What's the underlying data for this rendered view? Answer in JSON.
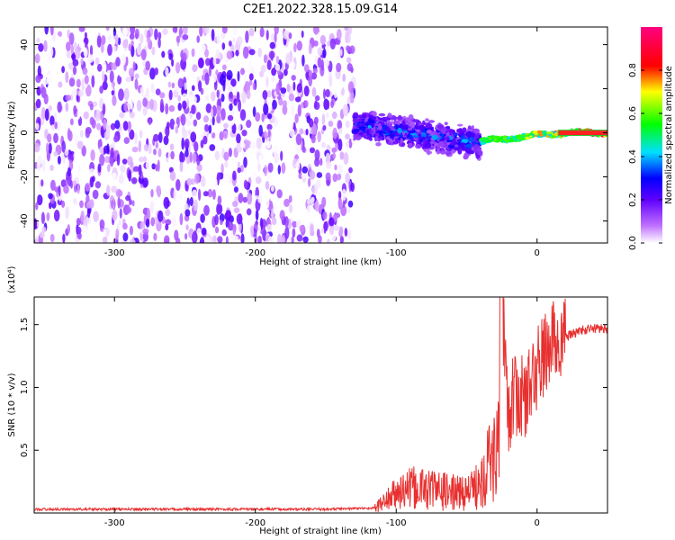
{
  "title": "C2E1.2022.328.15.09.G14",
  "chart_data": [
    {
      "type": "heatmap",
      "xlabel": "Height of straight line (km)",
      "ylabel": "Frequency (Hz)",
      "xlim": [
        -357,
        50
      ],
      "ylim": [
        -50,
        48
      ],
      "xticks": [
        -300,
        -200,
        -100,
        0
      ],
      "xtick_labels": [
        "-300",
        "-200",
        "-100",
        "0"
      ],
      "yticks": [
        -40,
        -20,
        0,
        20,
        40
      ],
      "ytick_labels": [
        "-40",
        "-20",
        "0",
        "20",
        "40"
      ],
      "colorbar": {
        "label": "Normalized spectral amplitude",
        "range": [
          0,
          1
        ],
        "ticks": [
          0.0,
          0.2,
          0.4,
          0.6,
          0.8
        ],
        "tick_labels": [
          "0.0",
          "0.2",
          "0.4",
          "0.6",
          "0.8"
        ],
        "colormap": "rainbow (white-purple-blue-cyan-green-yellow-red-magenta)"
      },
      "regions": [
        {
          "x_range": [
            -357,
            -130
          ],
          "freq_range": [
            -50,
            48
          ],
          "description_level": "broadband noise",
          "amplitude_range": [
            0.0,
            0.15
          ]
        },
        {
          "x_range": [
            -130,
            -40
          ],
          "freq_center_start": 4,
          "freq_center_end": -5,
          "freq_halfwidth": 8,
          "amplitude_range": [
            0.1,
            0.35
          ]
        },
        {
          "x_range": [
            -40,
            50
          ],
          "freq_center_start": -4,
          "freq_center_end": 0,
          "freq_halfwidth": 2,
          "amplitude_range": [
            0.4,
            1.0
          ]
        }
      ],
      "grid": false
    },
    {
      "type": "line",
      "xlabel": "Height of straight line (km)",
      "ylabel": "SNR (10 * v/v)",
      "multiplier_label": "(x10⁴)",
      "xlim": [
        -357,
        50
      ],
      "ylim": [
        0,
        1.72
      ],
      "xticks": [
        -300,
        -200,
        -100,
        0
      ],
      "xtick_labels": [
        "-300",
        "-200",
        "-100",
        "0"
      ],
      "yticks": [
        0.5,
        1.0,
        1.5
      ],
      "ytick_labels": [
        "0.5",
        "1.0",
        "1.5"
      ],
      "series": [
        {
          "color": "#e83030",
          "x": [
            -357,
            -300,
            -250,
            -200,
            -150,
            -115,
            -105,
            -95,
            -85,
            -75,
            -65,
            -55,
            -45,
            -40,
            -35,
            -30,
            -26,
            -25,
            -20,
            -15,
            -10,
            -5,
            0,
            5,
            10,
            20,
            30,
            40,
            50
          ],
          "y": [
            0.03,
            0.03,
            0.03,
            0.03,
            0.03,
            0.04,
            0.12,
            0.18,
            0.2,
            0.19,
            0.17,
            0.16,
            0.18,
            0.3,
            0.4,
            0.45,
            0.6,
            1.72,
            0.8,
            0.95,
            0.9,
            1.0,
            1.15,
            1.25,
            1.35,
            1.4,
            1.45,
            1.47,
            1.47
          ]
        }
      ],
      "grid": false
    }
  ]
}
